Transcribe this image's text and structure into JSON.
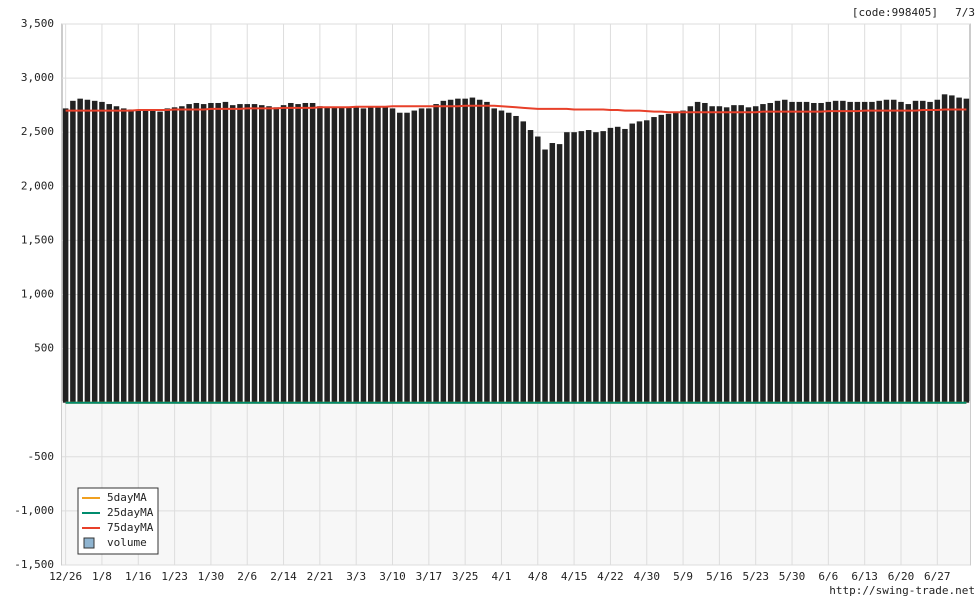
{
  "chart_data": {
    "type": "bar",
    "code_label": "[code:998405]",
    "date_label": "7/3",
    "footer": "http://swing-trade.net",
    "categories": [
      "12/26",
      null,
      null,
      null,
      null,
      "1/8",
      null,
      null,
      null,
      null,
      "1/16",
      null,
      null,
      null,
      null,
      "1/23",
      null,
      null,
      null,
      null,
      "1/30",
      null,
      null,
      null,
      null,
      "2/6",
      null,
      null,
      null,
      null,
      "2/14",
      null,
      null,
      null,
      null,
      "2/21",
      null,
      null,
      null,
      null,
      "3/3",
      null,
      null,
      null,
      null,
      "3/10",
      null,
      null,
      null,
      null,
      "3/17",
      null,
      null,
      null,
      null,
      "3/25",
      null,
      null,
      null,
      null,
      "4/1",
      null,
      null,
      null,
      null,
      "4/8",
      null,
      null,
      null,
      null,
      "4/15",
      null,
      null,
      null,
      null,
      "4/22",
      null,
      null,
      null,
      null,
      "4/30",
      null,
      null,
      null,
      null,
      "5/9",
      null,
      null,
      null,
      null,
      "5/16",
      null,
      null,
      null,
      null,
      "5/23",
      null,
      null,
      null,
      null,
      "5/30",
      null,
      null,
      null,
      null,
      "6/6",
      null,
      null,
      null,
      null,
      "6/13",
      null,
      null,
      null,
      null,
      "6/20",
      null,
      null,
      null,
      null,
      "6/27",
      null,
      null,
      null,
      null
    ],
    "values": [
      2720,
      2790,
      2810,
      2800,
      2790,
      2780,
      2760,
      2740,
      2720,
      2710,
      2710,
      2700,
      2700,
      2690,
      2720,
      2730,
      2740,
      2760,
      2770,
      2760,
      2770,
      2770,
      2780,
      2750,
      2760,
      2760,
      2760,
      2750,
      2740,
      2730,
      2750,
      2770,
      2760,
      2770,
      2770,
      2740,
      2730,
      2730,
      2730,
      2730,
      2730,
      2720,
      2730,
      2740,
      2730,
      2720,
      2680,
      2680,
      2700,
      2720,
      2720,
      2760,
      2790,
      2800,
      2810,
      2810,
      2820,
      2800,
      2780,
      2720,
      2700,
      2680,
      2650,
      2600,
      2520,
      2460,
      2340,
      2400,
      2390,
      2500,
      2500,
      2510,
      2520,
      2500,
      2510,
      2540,
      2550,
      2530,
      2580,
      2600,
      2610,
      2640,
      2660,
      2670,
      2680,
      2700,
      2740,
      2780,
      2770,
      2740,
      2740,
      2730,
      2750,
      2750,
      2730,
      2740,
      2760,
      2770,
      2790,
      2800,
      2780,
      2780,
      2780,
      2770,
      2770,
      2780,
      2790,
      2790,
      2780,
      2780,
      2780,
      2780,
      2790,
      2800,
      2800,
      2780,
      2760,
      2790,
      2790,
      2780,
      2800,
      2850,
      2840,
      2820,
      2810
    ],
    "color": "#222222",
    "series": [
      {
        "name": "5dayMA",
        "color": "#f0a020",
        "values": [
          0,
          0,
          0,
          0,
          0,
          0,
          0,
          0,
          0,
          0,
          0,
          0,
          0,
          0,
          0,
          0,
          0,
          0,
          0,
          0,
          0,
          0,
          0,
          0,
          0,
          0,
          0,
          0,
          0,
          0,
          0,
          0,
          0,
          0,
          0,
          0,
          0,
          0,
          0,
          0,
          0,
          0,
          0,
          0,
          0,
          0,
          0,
          0,
          0,
          0,
          0,
          0,
          0,
          0,
          0,
          0,
          0,
          0,
          0,
          0,
          0,
          0,
          0,
          0,
          0,
          0,
          0,
          0,
          0,
          0,
          0,
          0,
          0,
          0,
          0,
          0,
          0,
          0,
          0,
          0,
          0,
          0,
          0,
          0,
          0,
          0,
          0,
          0,
          0,
          0,
          0,
          0,
          0,
          0,
          0,
          0,
          0,
          0,
          0,
          0,
          0,
          0,
          0,
          0,
          0,
          0,
          0,
          0,
          0,
          0,
          0,
          0,
          0,
          0,
          0,
          0,
          0,
          0,
          0,
          0,
          0,
          0,
          0,
          0,
          0
        ]
      },
      {
        "name": "25dayMA",
        "color": "#008c6e",
        "values": [
          0,
          0,
          0,
          0,
          0,
          0,
          0,
          0,
          0,
          0,
          0,
          0,
          0,
          0,
          0,
          0,
          0,
          0,
          0,
          0,
          0,
          0,
          0,
          0,
          0,
          0,
          0,
          0,
          0,
          0,
          0,
          0,
          0,
          0,
          0,
          0,
          0,
          0,
          0,
          0,
          0,
          0,
          0,
          0,
          0,
          0,
          0,
          0,
          0,
          0,
          0,
          0,
          0,
          0,
          0,
          0,
          0,
          0,
          0,
          0,
          0,
          0,
          0,
          0,
          0,
          0,
          0,
          0,
          0,
          0,
          0,
          0,
          0,
          0,
          0,
          0,
          0,
          0,
          0,
          0,
          0,
          0,
          0,
          0,
          0,
          0,
          0,
          0,
          0,
          0,
          0,
          0,
          0,
          0,
          0,
          0,
          0,
          0,
          0,
          0,
          0,
          0,
          0,
          0,
          0,
          0,
          0,
          0,
          0,
          0,
          0,
          0,
          0,
          0,
          0,
          0,
          0,
          0,
          0,
          0,
          0,
          0,
          0,
          0,
          0
        ]
      },
      {
        "name": "75dayMA",
        "color": "#e8402a",
        "values": [
          2700,
          2700,
          2700,
          2700,
          2700,
          2700,
          2700,
          2700,
          2700,
          2700,
          2705,
          2705,
          2705,
          2705,
          2705,
          2710,
          2710,
          2710,
          2710,
          2710,
          2715,
          2715,
          2715,
          2715,
          2715,
          2720,
          2720,
          2720,
          2720,
          2720,
          2725,
          2725,
          2725,
          2725,
          2725,
          2730,
          2730,
          2730,
          2730,
          2730,
          2735,
          2735,
          2735,
          2735,
          2735,
          2740,
          2740,
          2740,
          2740,
          2740,
          2740,
          2740,
          2740,
          2740,
          2740,
          2745,
          2745,
          2745,
          2745,
          2745,
          2740,
          2735,
          2730,
          2725,
          2720,
          2715,
          2715,
          2715,
          2715,
          2715,
          2710,
          2710,
          2710,
          2710,
          2710,
          2705,
          2705,
          2700,
          2700,
          2700,
          2695,
          2690,
          2690,
          2685,
          2685,
          2685,
          2685,
          2685,
          2685,
          2685,
          2685,
          2685,
          2685,
          2685,
          2685,
          2685,
          2690,
          2690,
          2690,
          2690,
          2690,
          2690,
          2690,
          2690,
          2690,
          2695,
          2695,
          2695,
          2695,
          2695,
          2700,
          2700,
          2700,
          2700,
          2700,
          2700,
          2700,
          2700,
          2705,
          2705,
          2705,
          2710,
          2710,
          2710,
          2710
        ]
      },
      {
        "name": "volume",
        "color": "#8fb4d0",
        "values": [
          0,
          0,
          0,
          0,
          0,
          0,
          0,
          0,
          0,
          0,
          0,
          0,
          0,
          0,
          0,
          0,
          0,
          0,
          0,
          0,
          0,
          0,
          0,
          0,
          0,
          0,
          0,
          0,
          0,
          0,
          0,
          0,
          0,
          0,
          0,
          0,
          0,
          0,
          0,
          0,
          0,
          0,
          0,
          0,
          0,
          0,
          0,
          0,
          0,
          0,
          0,
          0,
          0,
          0,
          0,
          0,
          0,
          0,
          0,
          0,
          0,
          0,
          0,
          0,
          0,
          0,
          0,
          0,
          0,
          0,
          0,
          0,
          0,
          0,
          0,
          0,
          0,
          0,
          0,
          0,
          0,
          0,
          0,
          0,
          0,
          0,
          0,
          0,
          0,
          0,
          0,
          0,
          0,
          0,
          0,
          0,
          0,
          0,
          0,
          0,
          0,
          0,
          0,
          0,
          0,
          0,
          0,
          0,
          0,
          0,
          0,
          0,
          0,
          0,
          0,
          0,
          0,
          0,
          0,
          0,
          0,
          0,
          0,
          0,
          0
        ]
      }
    ],
    "ylim": [
      -1500,
      3500
    ],
    "yticks": [
      {
        "value": -1500,
        "label": "-1,500"
      },
      {
        "value": -1000,
        "label": "-1,000"
      },
      -500,
      500,
      {
        "value": 1000,
        "label": "1,000"
      },
      {
        "value": 1500,
        "label": "1,500"
      },
      {
        "value": 2000,
        "label": "2,000"
      },
      {
        "value": 2500,
        "label": "2,500"
      },
      {
        "value": 3000,
        "label": "3,000"
      },
      {
        "value": 3500,
        "label": "3,500"
      }
    ],
    "grid": true
  }
}
